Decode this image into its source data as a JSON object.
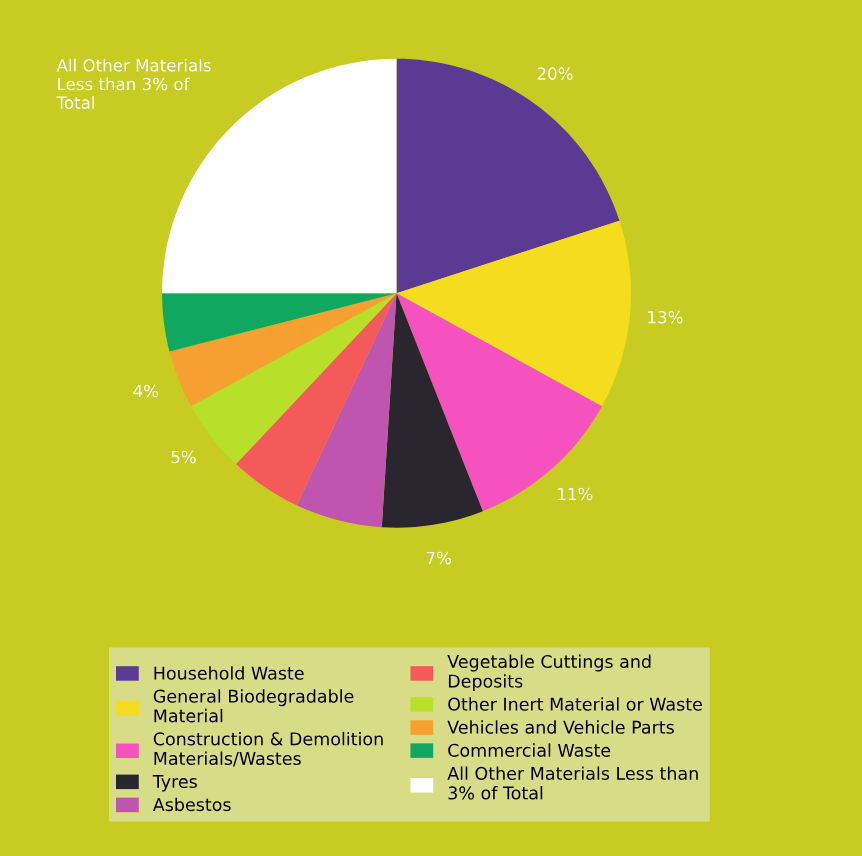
{
  "chart_data": {
    "type": "pie",
    "categories": [
      "Household Waste",
      "General Biodegradable\nMaterial",
      "Construction & Demolition\nMaterials/Wastes",
      "Tyres",
      "Asbestos",
      "Vegetable Cuttings and\nDeposits",
      "Other Inert Material or Waste",
      "Vehicles and Vehicle Parts",
      "Commercial Waste",
      "All Other Materials Less than\n3% of Total"
    ],
    "values": [
      20,
      13,
      11,
      7,
      6,
      5,
      5,
      4,
      4,
      25
    ],
    "colors": [
      "#5b3a94",
      "#f5dc1e",
      "#f552c0",
      "#2a2630",
      "#c055b0",
      "#f55a5a",
      "#b8e02a",
      "#f5a030",
      "#10a860",
      "#ffffff"
    ],
    "value_labels": [
      "20%",
      "13%",
      "11%",
      "7%",
      null,
      null,
      "5%",
      "4%",
      null,
      "All Other Materials\nLess than 3% of\nTotal"
    ],
    "legend": "bottom"
  }
}
